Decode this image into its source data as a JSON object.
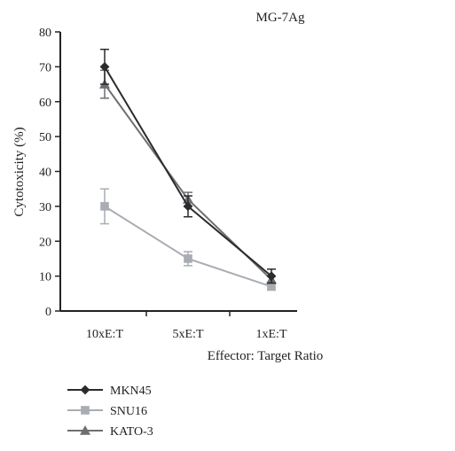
{
  "chart_data": {
    "type": "line",
    "title": "MG-7Ag",
    "xlabel": "Effector: Target Ratio",
    "ylabel": "Cytotoxicity (%)",
    "categories": [
      "10xE:T",
      "5xE:T",
      "1xE:T"
    ],
    "ylim": [
      0,
      80
    ],
    "yticks": [
      0,
      10,
      20,
      30,
      40,
      50,
      60,
      70,
      80
    ],
    "grid": false,
    "legend_position": "bottom-left",
    "series": [
      {
        "name": "MKN45",
        "values": [
          70,
          30,
          10
        ],
        "errors": [
          5,
          3,
          2
        ],
        "marker": "diamond",
        "color": "#2b2b2b"
      },
      {
        "name": "SNU16",
        "values": [
          30,
          15,
          7
        ],
        "errors": [
          5,
          2,
          1
        ],
        "marker": "square",
        "color": "#a9adb3"
      },
      {
        "name": "KATO-3",
        "values": [
          65,
          32,
          9
        ],
        "errors": [
          4,
          2,
          1
        ],
        "marker": "triangle",
        "color": "#6d6f73"
      }
    ]
  }
}
